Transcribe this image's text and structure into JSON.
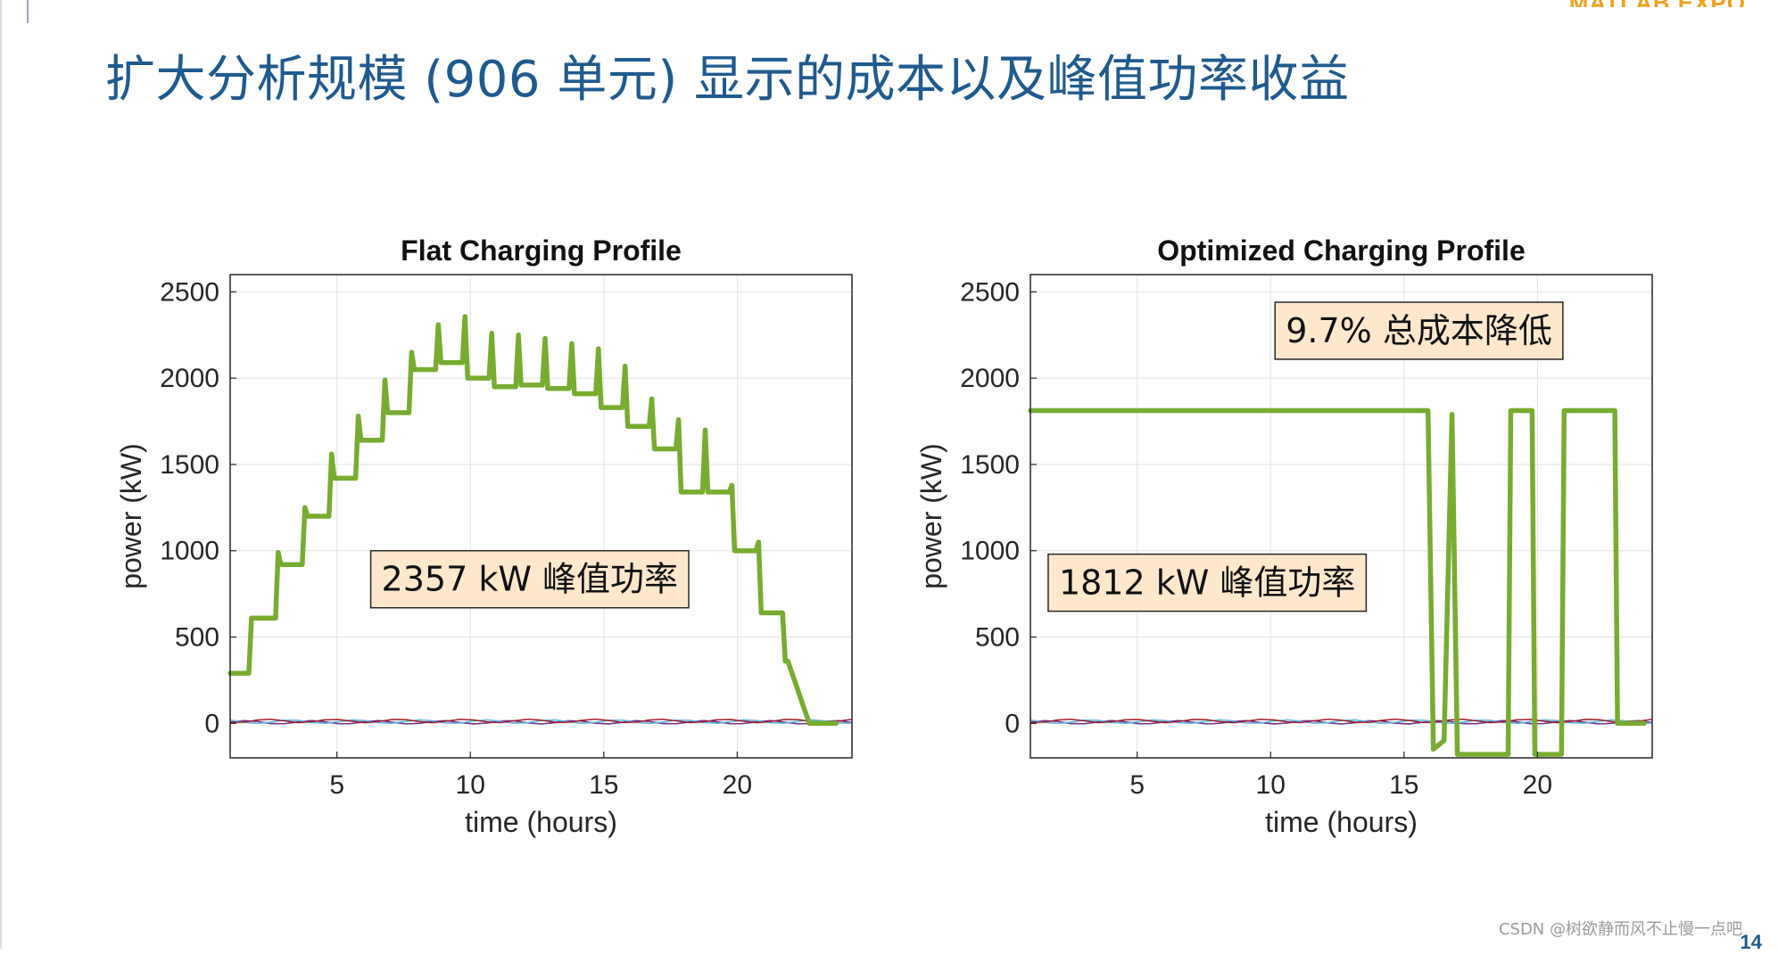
{
  "slide": {
    "title": "扩大分析规模 (906 单元) 显示的成本以及峰值功率收益",
    "brand_fragment": "MATLAB EXPO",
    "watermark": "CSDN @树欲静而风不止慢一点吧",
    "page_number": "14"
  },
  "colors": {
    "title": "#1f5a8f",
    "main_line": "#77ac30",
    "annotation_bg": "#fde8cc",
    "grid": "#e3e3e3",
    "background_lines": [
      "#0072bd",
      "#d95319",
      "#edb120",
      "#7e2f8e",
      "#4dbeee",
      "#a2142f"
    ]
  },
  "chart_data": [
    {
      "type": "line",
      "title": "Flat Charging Profile",
      "xlabel": "time (hours)",
      "ylabel": "power (kW)",
      "xlim": [
        1,
        24.3
      ],
      "ylim": [
        -200,
        2600
      ],
      "xticks": [
        5,
        10,
        15,
        20
      ],
      "yticks": [
        0,
        500,
        1000,
        1500,
        2000,
        2500
      ],
      "grid": true,
      "annotations": [
        {
          "text": "2357 kW 峰值功率",
          "x": 6.2,
          "y": 840
        }
      ],
      "series": [
        {
          "x": [
            1,
            1.7,
            1.8,
            2.7,
            2.8,
            2.9,
            3.7,
            3.8,
            3.9,
            4.7,
            4.8,
            4.9,
            5.7,
            5.8,
            5.9,
            6.7,
            6.8,
            6.9,
            7.7,
            7.8,
            7.9,
            8.7,
            8.8,
            8.9,
            9.7,
            9.8,
            9.9,
            10.7,
            10.8,
            10.9,
            11.7,
            11.8,
            11.9,
            12.7,
            12.8,
            12.9,
            13.7,
            13.8,
            13.9,
            14.7,
            14.8,
            14.9,
            15.7,
            15.8,
            15.9,
            16.7,
            16.8,
            16.9,
            17.7,
            17.8,
            17.9,
            18.7,
            18.8,
            18.9,
            19.7,
            19.8,
            19.9,
            20.7,
            20.8,
            20.9,
            21.7,
            21.8,
            21.9,
            22.7,
            22.8,
            22.9,
            23.7
          ],
          "values": [
            290,
            290,
            610,
            610,
            990,
            920,
            920,
            1250,
            1200,
            1200,
            1560,
            1420,
            1420,
            1780,
            1640,
            1640,
            1990,
            1800,
            1800,
            2150,
            2050,
            2050,
            2310,
            2090,
            2090,
            2357,
            2000,
            2000,
            2260,
            1950,
            1950,
            2250,
            1960,
            1960,
            2230,
            1940,
            1940,
            2200,
            1910,
            1910,
            2170,
            1830,
            1830,
            2070,
            1720,
            1720,
            1880,
            1590,
            1590,
            1760,
            1340,
            1340,
            1700,
            1340,
            1340,
            1380,
            1000,
            1000,
            1050,
            640,
            640,
            360,
            360,
            0,
            0,
            0,
            0
          ],
          "color": "#77ac30"
        }
      ]
    },
    {
      "type": "line",
      "title": "Optimized Charging Profile",
      "xlabel": "time (hours)",
      "ylabel": "power (kW)",
      "xlim": [
        1,
        24.3
      ],
      "ylim": [
        -200,
        2600
      ],
      "xticks": [
        5,
        10,
        15,
        20
      ],
      "yticks": [
        0,
        500,
        1000,
        1500,
        2000,
        2500
      ],
      "grid": true,
      "annotations": [
        {
          "text": "1812 kW 峰值功率",
          "x": 1.6,
          "y": 820
        },
        {
          "text": "9.7% 总成本降低",
          "x": 10.1,
          "y": 2280
        }
      ],
      "series": [
        {
          "x": [
            1,
            15.9,
            16.1,
            16.5,
            16.8,
            17.0,
            17.1,
            18.9,
            19.0,
            19.8,
            19.9,
            20.9,
            21.0,
            22.9,
            23.0,
            24.0
          ],
          "values": [
            1812,
            1812,
            -150,
            -100,
            1790,
            -180,
            -180,
            -180,
            1812,
            1812,
            -180,
            -180,
            1812,
            1812,
            0,
            0
          ],
          "color": "#77ac30"
        }
      ]
    }
  ]
}
